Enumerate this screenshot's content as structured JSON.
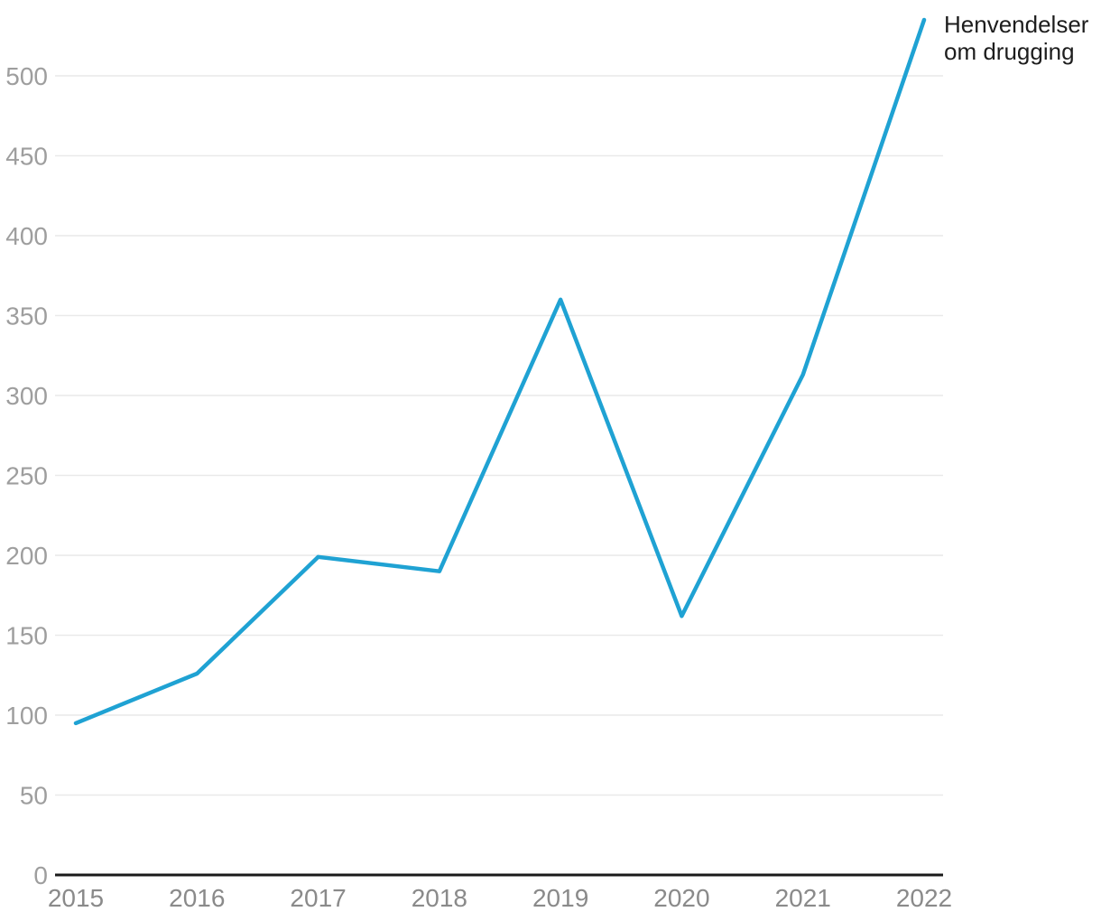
{
  "chart_data": {
    "type": "line",
    "title": "",
    "x": [
      "2015",
      "2016",
      "2017",
      "2018",
      "2019",
      "2020",
      "2021",
      "2022"
    ],
    "series": [
      {
        "name": "Henvendelser om drugging",
        "label_lines": [
          "Henvendelser",
          "om drugging"
        ],
        "values": [
          95,
          126,
          199,
          190,
          360,
          162,
          313,
          535
        ],
        "color": "#1fa2d3"
      }
    ],
    "ylim": [
      0,
      500
    ],
    "ytick_step": 50,
    "yticks": [
      0,
      50,
      100,
      150,
      200,
      250,
      300,
      350,
      400,
      450,
      500
    ],
    "grid": "horizontal",
    "legend_position": "line-end-top-right"
  },
  "colors": {
    "background": "#ffffff",
    "line": "#1fa2d3",
    "gridline": "#e9e9e9",
    "axis_line": "#1a1a1a",
    "y_tick_label": "#9e9e9e",
    "x_tick_label": "#8a8a8a",
    "series_label": "#1d1d1d"
  }
}
